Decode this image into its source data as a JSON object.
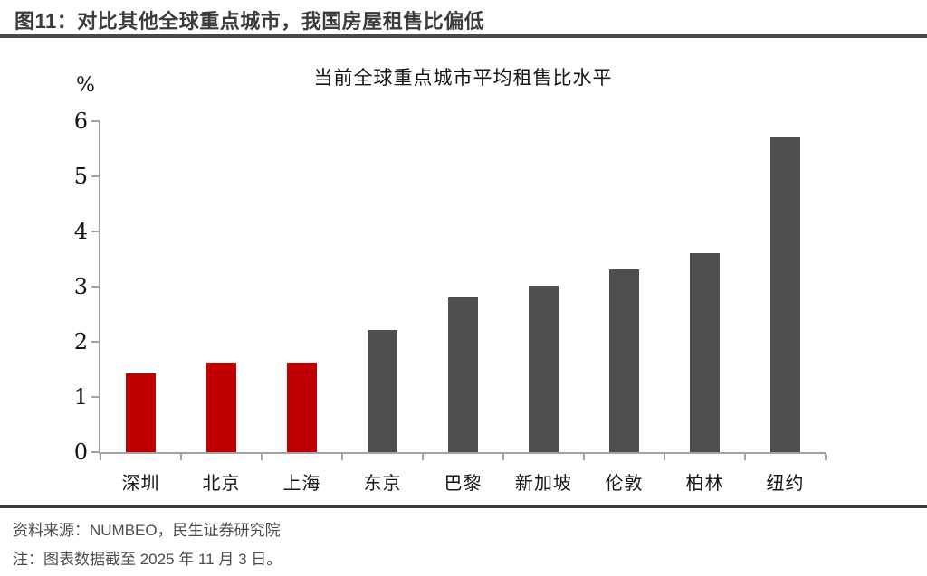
{
  "figure": {
    "title": "图11：对比其他全球重点城市，我国房屋租售比偏低"
  },
  "chart_data": {
    "type": "bar",
    "title": "当前全球重点城市平均租售比水平",
    "ylabel": "%",
    "xlabel": "",
    "categories": [
      "深圳",
      "北京",
      "上海",
      "东京",
      "巴黎",
      "新加坡",
      "伦敦",
      "柏林",
      "纽约"
    ],
    "values": [
      1.43,
      1.62,
      1.62,
      2.21,
      2.81,
      3.01,
      3.31,
      3.61,
      5.7
    ],
    "ylim": [
      0,
      6
    ],
    "yticks": [
      0,
      1,
      2,
      3,
      4,
      5,
      6
    ],
    "grid": false,
    "legend_position": "none",
    "highlight_categories": [
      "深圳",
      "北京",
      "上海"
    ],
    "colors": {
      "highlight": "#c00000",
      "default": "#4f4f52",
      "axis": "#a2a2a4"
    }
  },
  "footer": {
    "source": "资料来源：NUMBEO，民生证券研究院",
    "note": "注：图表数据截至 2025 年 11 月 3 日。"
  }
}
